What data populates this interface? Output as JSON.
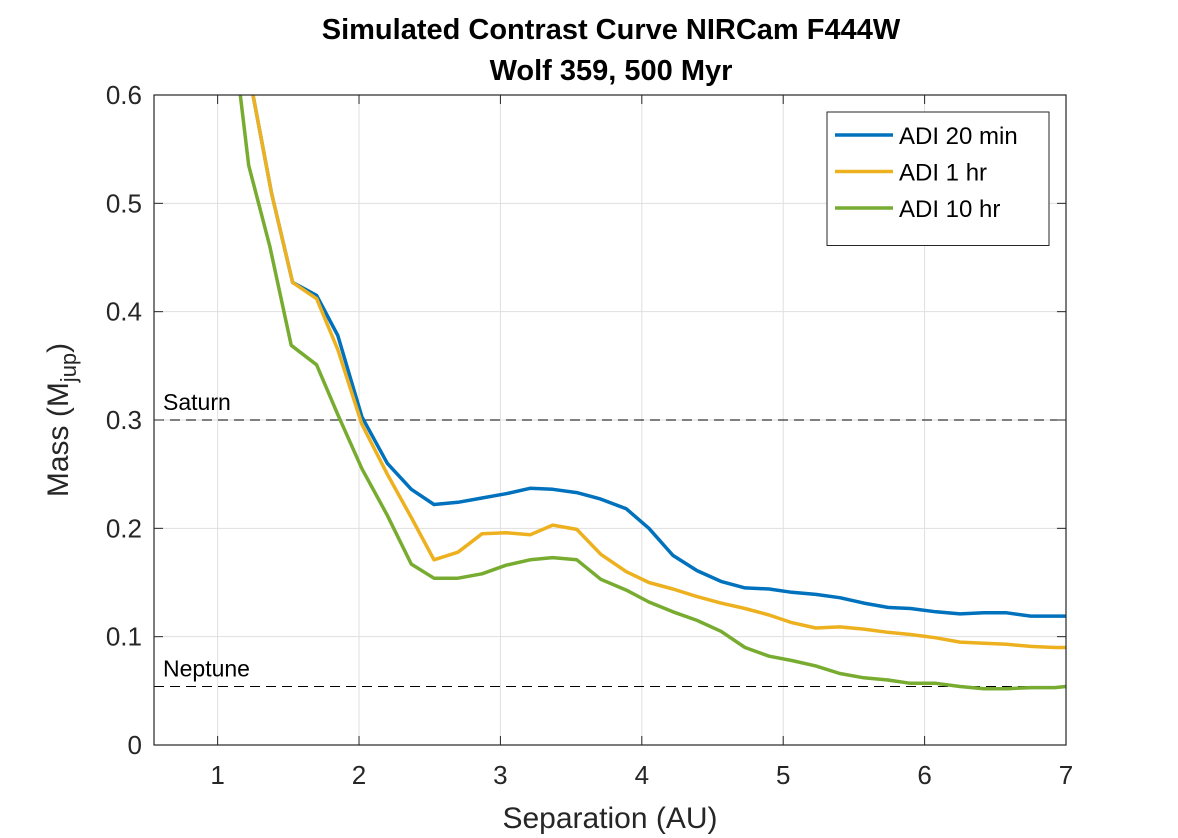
{
  "chart_data": {
    "type": "line",
    "title": "Simulated Contrast Curve NIRCam F444W",
    "subtitle": "Wolf 359, 500 Myr",
    "xlabel": "Separation (AU)",
    "ylabel": {
      "main": "Mass (M",
      "subscript": "jup",
      "close": ")"
    },
    "xlim": [
      0.55,
      7
    ],
    "ylim": [
      0,
      0.6
    ],
    "xticks": [
      1,
      2,
      3,
      4,
      5,
      6,
      7
    ],
    "yticks": [
      0,
      0.1,
      0.2,
      0.3,
      0.4,
      0.5,
      0.6
    ],
    "grid": true,
    "legend_position": "top-right",
    "reference_lines": [
      {
        "label": "Saturn",
        "y": 0.3
      },
      {
        "label": "Neptune",
        "y": 0.054
      }
    ],
    "series": [
      {
        "name": "ADI 20 min",
        "color": "#0072BD",
        "x": [
          1.25,
          1.38,
          1.53,
          1.7,
          1.85,
          2.02,
          2.2,
          2.37,
          2.53,
          2.7,
          2.87,
          3.04,
          3.21,
          3.37,
          3.54,
          3.71,
          3.89,
          4.05,
          4.22,
          4.39,
          4.56,
          4.73,
          4.9,
          5.06,
          5.23,
          5.4,
          5.57,
          5.74,
          5.9,
          6.08,
          6.25,
          6.42,
          6.58,
          6.75,
          6.92,
          7.0
        ],
        "values": [
          0.6,
          0.51,
          0.427,
          0.415,
          0.378,
          0.303,
          0.26,
          0.236,
          0.222,
          0.224,
          0.228,
          0.232,
          0.237,
          0.236,
          0.233,
          0.227,
          0.218,
          0.2,
          0.175,
          0.161,
          0.151,
          0.145,
          0.144,
          0.141,
          0.139,
          0.136,
          0.131,
          0.127,
          0.126,
          0.123,
          0.121,
          0.122,
          0.122,
          0.119,
          0.119,
          0.119
        ]
      },
      {
        "name": "ADI 1 hr",
        "color": "#EDB120",
        "x": [
          1.25,
          1.38,
          1.53,
          1.7,
          1.85,
          2.02,
          2.2,
          2.37,
          2.53,
          2.7,
          2.87,
          3.04,
          3.21,
          3.37,
          3.54,
          3.71,
          3.89,
          4.05,
          4.22,
          4.39,
          4.56,
          4.73,
          4.9,
          5.06,
          5.23,
          5.4,
          5.57,
          5.74,
          5.9,
          6.08,
          6.25,
          6.42,
          6.58,
          6.75,
          6.92,
          7.0
        ],
        "values": [
          0.6,
          0.51,
          0.427,
          0.412,
          0.365,
          0.296,
          0.25,
          0.21,
          0.171,
          0.178,
          0.195,
          0.196,
          0.194,
          0.203,
          0.199,
          0.176,
          0.16,
          0.15,
          0.144,
          0.137,
          0.131,
          0.126,
          0.12,
          0.113,
          0.108,
          0.109,
          0.107,
          0.104,
          0.102,
          0.099,
          0.095,
          0.094,
          0.093,
          0.091,
          0.09,
          0.09
        ]
      },
      {
        "name": "ADI 10 hr",
        "color": "#77AC30",
        "x": [
          1.16,
          1.22,
          1.37,
          1.52,
          1.7,
          1.85,
          2.02,
          2.2,
          2.37,
          2.53,
          2.7,
          2.87,
          3.04,
          3.21,
          3.37,
          3.54,
          3.71,
          3.89,
          4.05,
          4.22,
          4.39,
          4.56,
          4.73,
          4.9,
          5.06,
          5.23,
          5.4,
          5.57,
          5.74,
          5.9,
          6.08,
          6.25,
          6.42,
          6.58,
          6.75,
          6.92,
          7.0
        ],
        "values": [
          0.6,
          0.535,
          0.46,
          0.369,
          0.351,
          0.305,
          0.255,
          0.212,
          0.167,
          0.154,
          0.154,
          0.158,
          0.166,
          0.171,
          0.173,
          0.171,
          0.153,
          0.143,
          0.132,
          0.123,
          0.115,
          0.105,
          0.09,
          0.082,
          0.078,
          0.073,
          0.066,
          0.062,
          0.06,
          0.057,
          0.057,
          0.054,
          0.052,
          0.052,
          0.053,
          0.053,
          0.054
        ]
      }
    ]
  }
}
